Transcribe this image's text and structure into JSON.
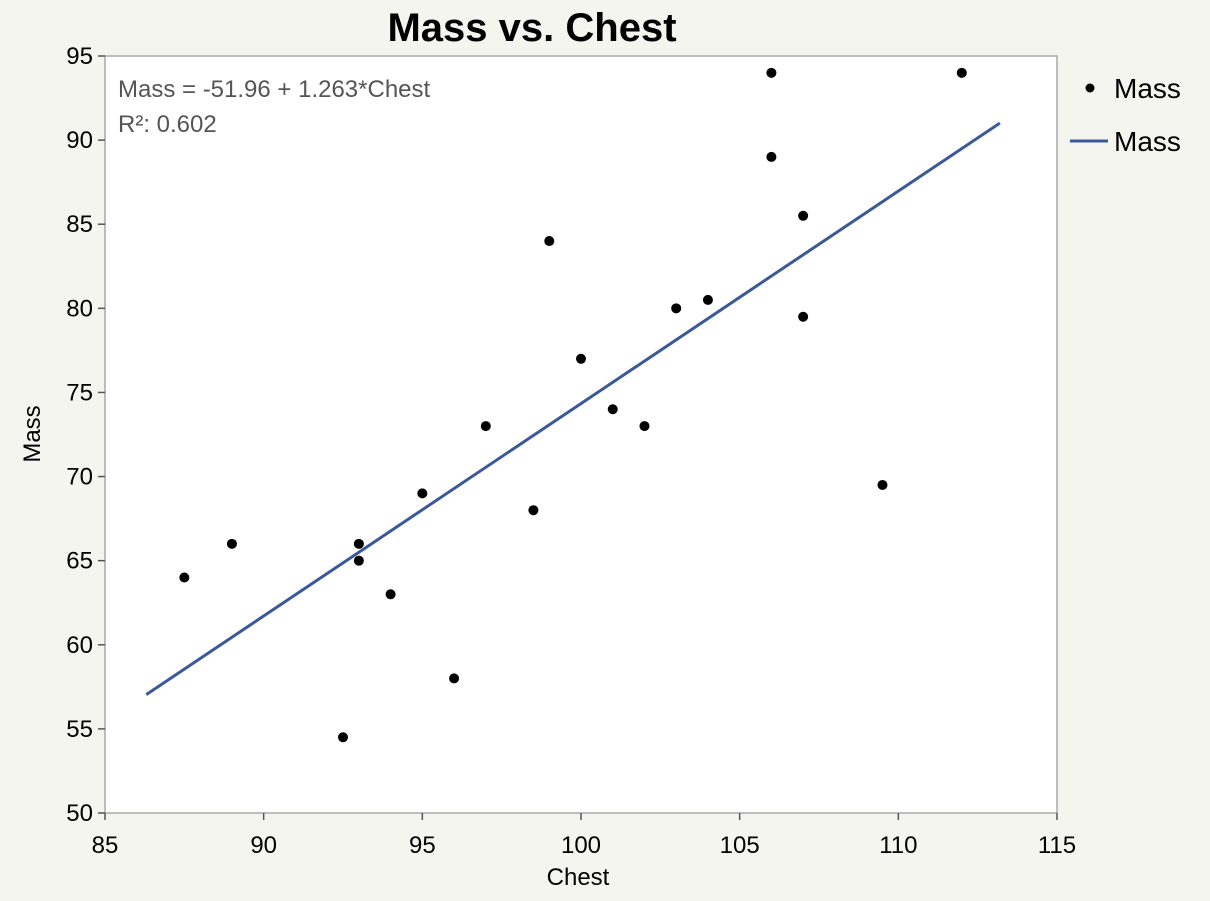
{
  "chart_data": {
    "type": "scatter",
    "title": "Mass vs. Chest",
    "xlabel": "Chest",
    "ylabel": "Mass",
    "xlim": [
      85,
      115
    ],
    "ylim": [
      50,
      95
    ],
    "xticks": [
      85,
      90,
      95,
      100,
      105,
      110,
      115
    ],
    "yticks": [
      50,
      55,
      60,
      65,
      70,
      75,
      80,
      85,
      90,
      95
    ],
    "grid": false,
    "legend_position": "right",
    "annotation": {
      "equation": "Mass = -51.96 + 1.263*Chest",
      "r_squared": "R²: 0.602"
    },
    "series": [
      {
        "name": "Mass",
        "kind": "points",
        "color": "#000000",
        "points": [
          [
            87.5,
            64
          ],
          [
            89,
            66
          ],
          [
            92.5,
            54.5
          ],
          [
            93,
            66
          ],
          [
            93,
            65
          ],
          [
            94,
            63
          ],
          [
            95,
            69
          ],
          [
            96,
            58
          ],
          [
            97,
            73
          ],
          [
            98.5,
            68
          ],
          [
            99,
            84
          ],
          [
            100,
            77
          ],
          [
            101,
            74
          ],
          [
            102,
            73
          ],
          [
            103,
            80
          ],
          [
            104,
            80.5
          ],
          [
            106,
            94
          ],
          [
            106,
            89
          ],
          [
            107,
            85.5
          ],
          [
            107,
            79.5
          ],
          [
            109.5,
            69.5
          ],
          [
            112,
            94
          ]
        ]
      },
      {
        "name": "Mass",
        "kind": "fit-line",
        "color": "#3b5998",
        "intercept": -51.96,
        "slope": 1.263,
        "x_range": [
          86.3,
          113.2
        ]
      }
    ]
  }
}
